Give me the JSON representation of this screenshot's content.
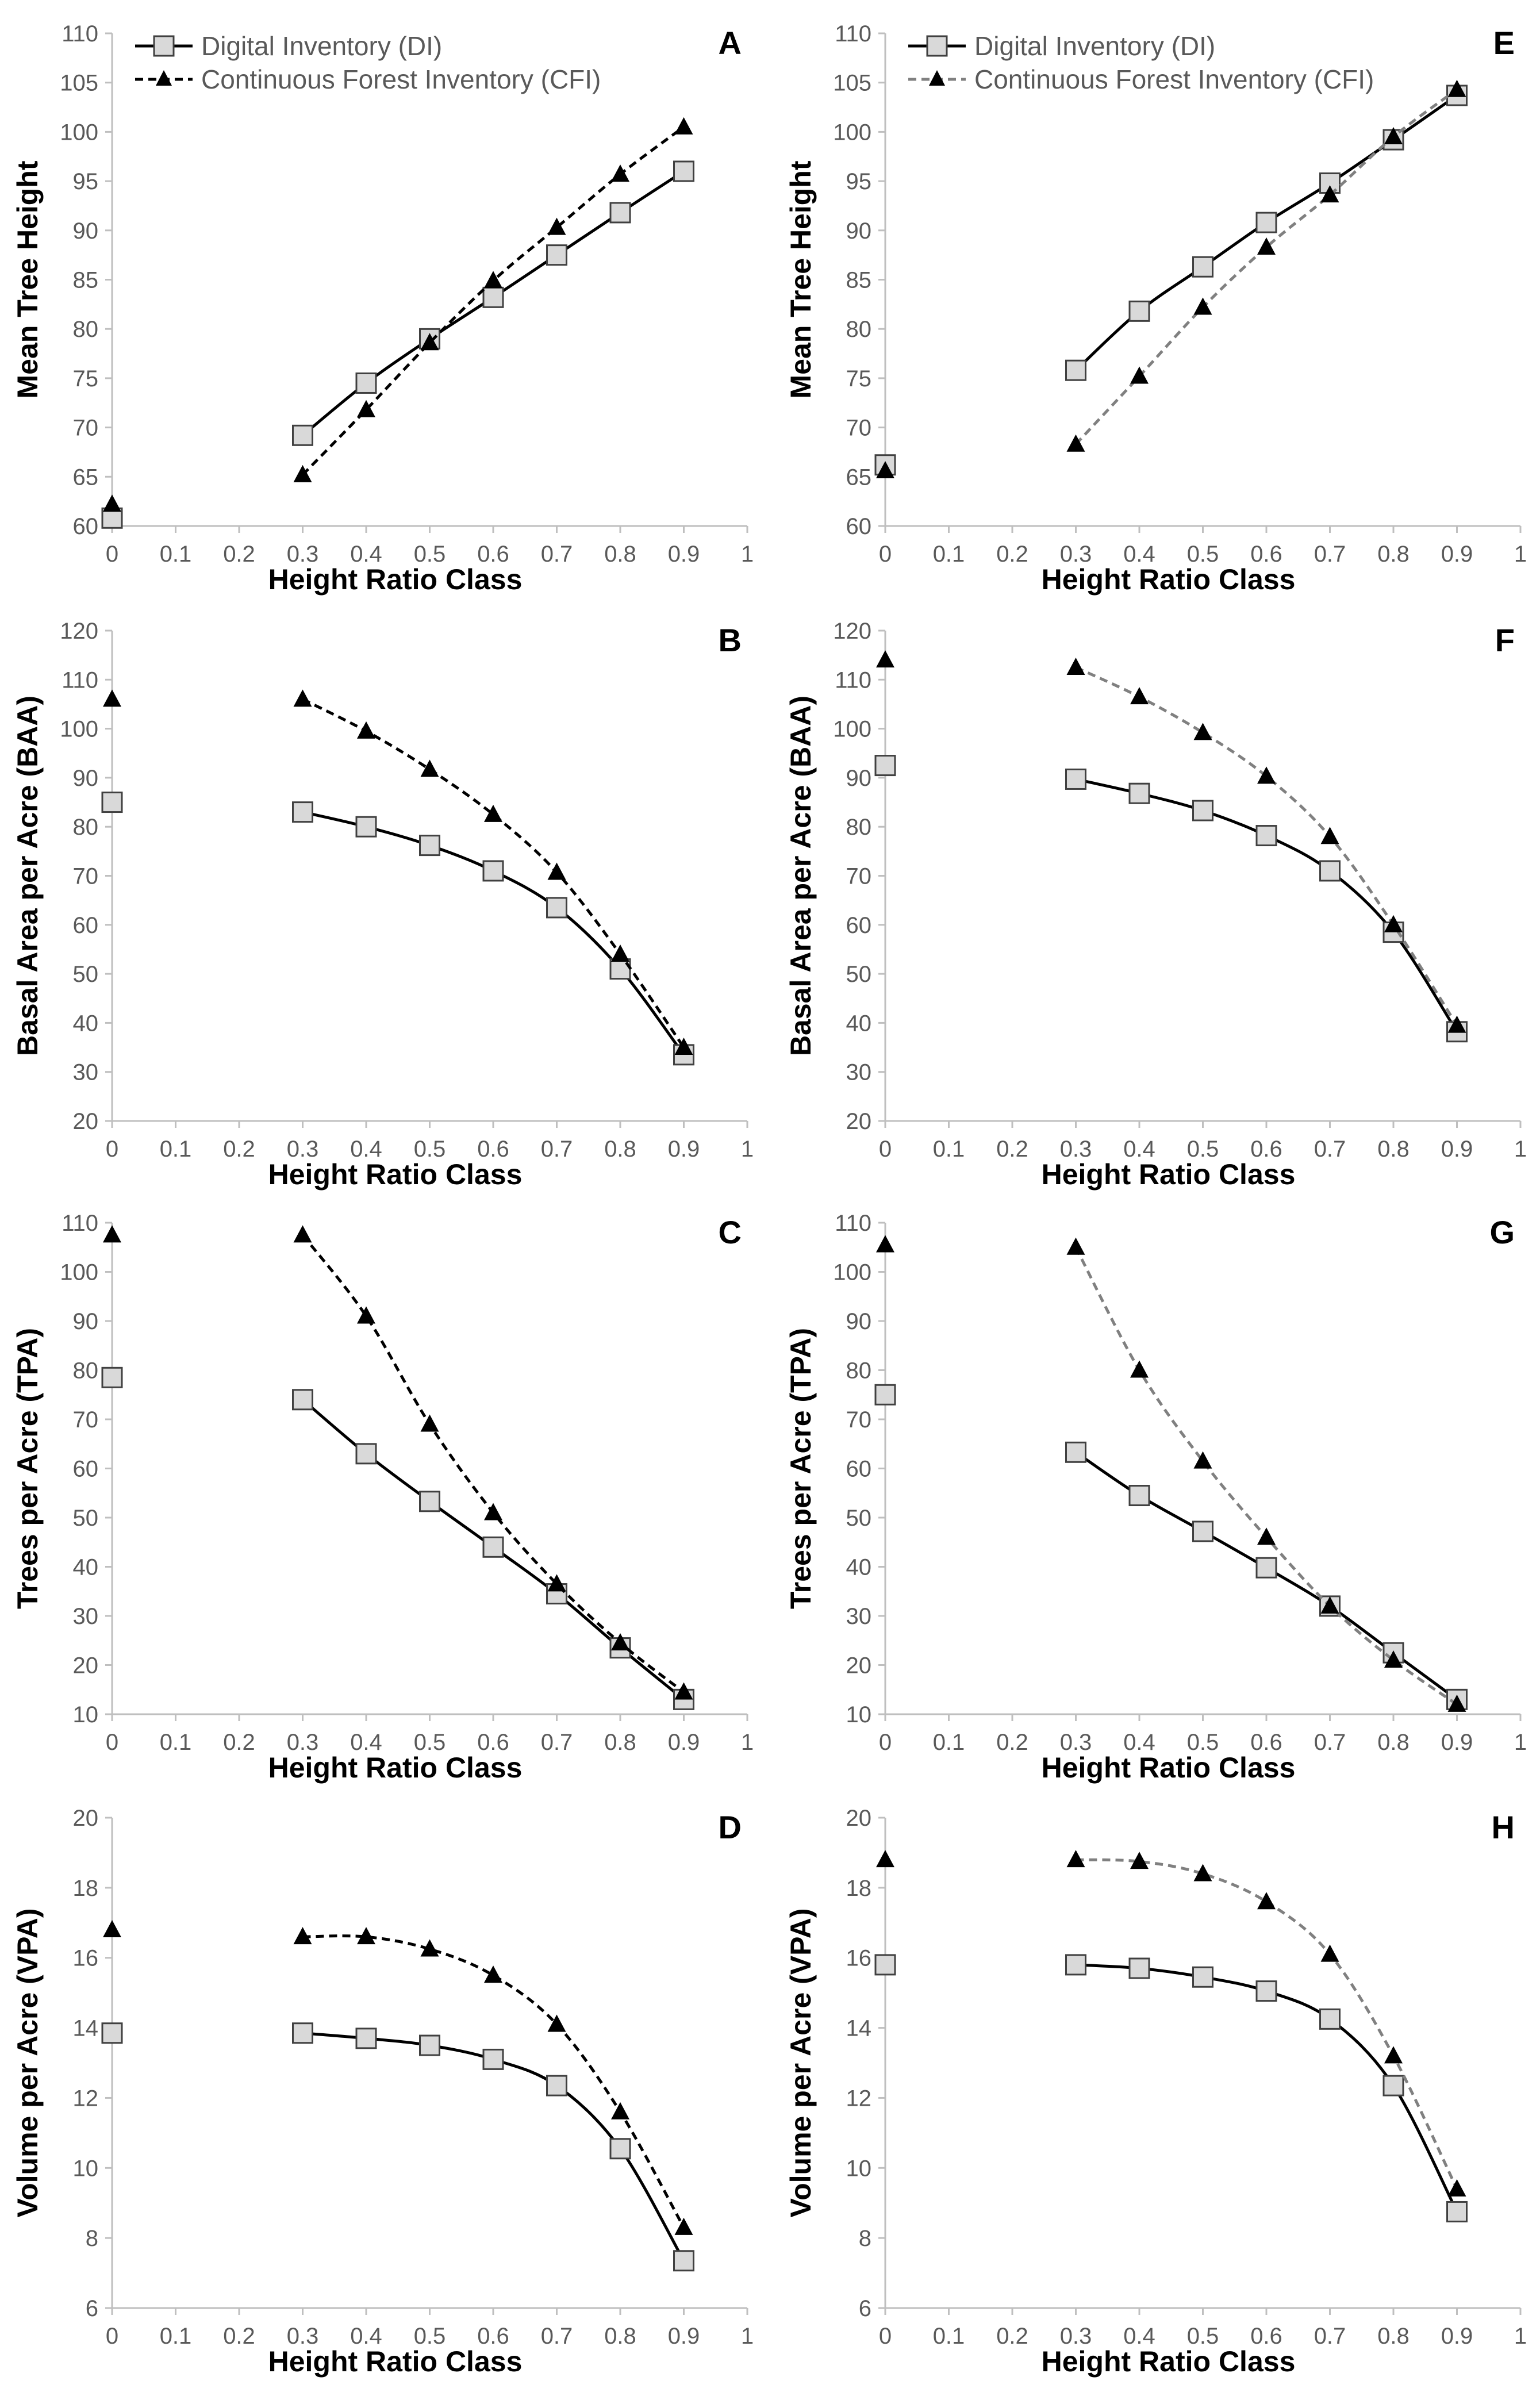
{
  "figure": {
    "legend": {
      "di_label": "Digital Inventory (DI)",
      "cfi_label": "Continuous Forest Inventory (CFI)"
    },
    "colors": {
      "di_line": "#000000",
      "di_marker_fill": "#d9d9d9",
      "cfi_left": "#000000",
      "cfi_right": "#808080",
      "axis": "#bfbfbf",
      "tick_text": "#595959"
    }
  },
  "chart_data": [
    {
      "id": "A",
      "type": "line",
      "panel_label": "A",
      "xlabel": "Height Ratio Class",
      "ylabel": "Mean Tree Height",
      "xlim": [
        0,
        1
      ],
      "xticks": [
        0,
        0.1,
        0.2,
        0.3,
        0.4,
        0.5,
        0.6,
        0.7,
        0.8,
        0.9,
        1
      ],
      "xtick_labels": [
        "0",
        "0.1",
        "0.2",
        "0.3",
        "0.4",
        "0.5",
        "0.6",
        "0.7",
        "0.8",
        "0.9",
        "1"
      ],
      "ylim": [
        60,
        110
      ],
      "yticks": [
        60,
        65,
        70,
        75,
        80,
        85,
        90,
        95,
        100,
        105,
        110
      ],
      "ytick_labels": [
        "60",
        "65",
        "70",
        "75",
        "80",
        "85",
        "90",
        "95",
        "100",
        "105",
        "110"
      ],
      "show_legend": true,
      "cfi_style": "black",
      "series": [
        {
          "name": "Digital Inventory (DI)",
          "marker": "square",
          "x": [
            0,
            0.3,
            0.4,
            0.5,
            0.6,
            0.7,
            0.8,
            0.9
          ],
          "y": [
            60.8,
            69.2,
            74.5,
            79.0,
            83.2,
            87.5,
            91.8,
            96.0
          ]
        },
        {
          "name": "Continuous Forest Inventory (CFI)",
          "marker": "triangle",
          "x": [
            0,
            0.3,
            0.4,
            0.5,
            0.6,
            0.7,
            0.8,
            0.9
          ],
          "y": [
            62.2,
            65.2,
            71.8,
            78.6,
            84.9,
            90.3,
            95.7,
            100.5
          ]
        }
      ]
    },
    {
      "id": "E",
      "type": "line",
      "panel_label": "E",
      "xlabel": "Height Ratio Class",
      "ylabel": "Mean Tree Height",
      "xlim": [
        0,
        1
      ],
      "xticks": [
        0,
        0.1,
        0.2,
        0.3,
        0.4,
        0.5,
        0.6,
        0.7,
        0.8,
        0.9,
        1
      ],
      "xtick_labels": [
        "0",
        "0.1",
        "0.2",
        "0.3",
        "0.4",
        "0.5",
        "0.6",
        "0.7",
        "0.8",
        "0.9",
        "1"
      ],
      "ylim": [
        60,
        110
      ],
      "yticks": [
        60,
        65,
        70,
        75,
        80,
        85,
        90,
        95,
        100,
        105,
        110
      ],
      "ytick_labels": [
        "60",
        "65",
        "70",
        "75",
        "80",
        "85",
        "90",
        "95",
        "100",
        "105",
        "110"
      ],
      "show_legend": true,
      "cfi_style": "gray",
      "series": [
        {
          "name": "Digital Inventory (DI)",
          "marker": "square",
          "x": [
            0,
            0.3,
            0.4,
            0.5,
            0.6,
            0.7,
            0.8,
            0.9
          ],
          "y": [
            66.2,
            75.8,
            81.8,
            86.3,
            90.8,
            94.8,
            99.2,
            103.7
          ]
        },
        {
          "name": "Continuous Forest Inventory (CFI)",
          "marker": "triangle",
          "x": [
            0,
            0.3,
            0.4,
            0.5,
            0.6,
            0.7,
            0.8,
            0.9
          ],
          "y": [
            65.6,
            68.3,
            75.2,
            82.2,
            88.3,
            93.6,
            99.5,
            104.3
          ]
        }
      ]
    },
    {
      "id": "B",
      "type": "line",
      "panel_label": "B",
      "xlabel": "Height Ratio Class",
      "ylabel": "Basal Area per Acre (BAA)",
      "xlim": [
        0,
        1
      ],
      "xticks": [
        0,
        0.1,
        0.2,
        0.3,
        0.4,
        0.5,
        0.6,
        0.7,
        0.8,
        0.9,
        1
      ],
      "xtick_labels": [
        "0",
        "0.1",
        "0.2",
        "0.3",
        "0.4",
        "0.5",
        "0.6",
        "0.7",
        "0.8",
        "0.9",
        "1"
      ],
      "ylim": [
        20,
        120
      ],
      "yticks": [
        20,
        30,
        40,
        50,
        60,
        70,
        80,
        90,
        100,
        110,
        120
      ],
      "ytick_labels": [
        "20",
        "30",
        "40",
        "50",
        "60",
        "70",
        "80",
        "90",
        "100",
        "110",
        "120"
      ],
      "show_legend": false,
      "cfi_style": "black",
      "series": [
        {
          "name": "Digital Inventory (DI)",
          "marker": "square",
          "x": [
            0,
            0.3,
            0.4,
            0.5,
            0.6,
            0.7,
            0.8,
            0.9
          ],
          "y": [
            85.0,
            83.0,
            80.0,
            76.2,
            71.0,
            63.5,
            51.0,
            33.5
          ]
        },
        {
          "name": "Continuous Forest Inventory (CFI)",
          "marker": "triangle",
          "x": [
            0,
            0.3,
            0.4,
            0.5,
            0.6,
            0.7,
            0.8,
            0.9
          ],
          "y": [
            106.0,
            106.0,
            99.5,
            91.7,
            82.5,
            70.7,
            54.0,
            35.0
          ]
        }
      ]
    },
    {
      "id": "F",
      "type": "line",
      "panel_label": "F",
      "xlabel": "Height Ratio Class",
      "ylabel": "Basal Area per Acre (BAA)",
      "xlim": [
        0,
        1
      ],
      "xticks": [
        0,
        0.1,
        0.2,
        0.3,
        0.4,
        0.5,
        0.6,
        0.7,
        0.8,
        0.9,
        1
      ],
      "xtick_labels": [
        "0",
        "0.1",
        "0.2",
        "0.3",
        "0.4",
        "0.5",
        "0.6",
        "0.7",
        "0.8",
        "0.9",
        "1"
      ],
      "ylim": [
        20,
        120
      ],
      "yticks": [
        20,
        30,
        40,
        50,
        60,
        70,
        80,
        90,
        100,
        110,
        120
      ],
      "ytick_labels": [
        "20",
        "30",
        "40",
        "50",
        "60",
        "70",
        "80",
        "90",
        "100",
        "110",
        "120"
      ],
      "show_legend": false,
      "cfi_style": "gray",
      "series": [
        {
          "name": "Digital Inventory (DI)",
          "marker": "square",
          "x": [
            0,
            0.3,
            0.4,
            0.5,
            0.6,
            0.7,
            0.8,
            0.9
          ],
          "y": [
            92.5,
            89.7,
            86.8,
            83.3,
            78.2,
            71.0,
            58.5,
            38.2
          ]
        },
        {
          "name": "Continuous Forest Inventory (CFI)",
          "marker": "triangle",
          "x": [
            0,
            0.3,
            0.4,
            0.5,
            0.6,
            0.7,
            0.8,
            0.9
          ],
          "y": [
            114.0,
            112.5,
            106.5,
            99.2,
            90.3,
            78.0,
            60.0,
            39.5
          ]
        }
      ]
    },
    {
      "id": "C",
      "type": "line",
      "panel_label": "C",
      "xlabel": "Height Ratio Class",
      "ylabel": "Trees per Acre (TPA)",
      "xlim": [
        0,
        1
      ],
      "xticks": [
        0,
        0.1,
        0.2,
        0.3,
        0.4,
        0.5,
        0.6,
        0.7,
        0.8,
        0.9,
        1
      ],
      "xtick_labels": [
        "0",
        "0.1",
        "0.2",
        "0.3",
        "0.4",
        "0.5",
        "0.6",
        "0.7",
        "0.8",
        "0.9",
        "1"
      ],
      "ylim": [
        10,
        110
      ],
      "yticks": [
        10,
        20,
        30,
        40,
        50,
        60,
        70,
        80,
        90,
        100,
        110
      ],
      "ytick_labels": [
        "10",
        "20",
        "30",
        "40",
        "50",
        "60",
        "70",
        "80",
        "90",
        "100",
        "110"
      ],
      "show_legend": false,
      "cfi_style": "black",
      "series": [
        {
          "name": "Digital Inventory (DI)",
          "marker": "square",
          "x": [
            0,
            0.3,
            0.4,
            0.5,
            0.6,
            0.7,
            0.8,
            0.9
          ],
          "y": [
            78.5,
            74.0,
            63.0,
            53.3,
            44.0,
            34.5,
            23.5,
            13.0
          ]
        },
        {
          "name": "Continuous Forest Inventory (CFI)",
          "marker": "triangle",
          "x": [
            0,
            0.3,
            0.4,
            0.5,
            0.6,
            0.7,
            0.8,
            0.9
          ],
          "y": [
            107.5,
            107.5,
            91.0,
            69.0,
            51.0,
            36.5,
            24.5,
            14.5
          ]
        }
      ]
    },
    {
      "id": "G",
      "type": "line",
      "panel_label": "G",
      "xlabel": "Height Ratio Class",
      "ylabel": "Trees per Acre (TPA)",
      "xlim": [
        0,
        1
      ],
      "xticks": [
        0,
        0.1,
        0.2,
        0.3,
        0.4,
        0.5,
        0.6,
        0.7,
        0.8,
        0.9,
        1
      ],
      "xtick_labels": [
        "0",
        "0.1",
        "0.2",
        "0.3",
        "0.4",
        "0.5",
        "0.6",
        "0.7",
        "0.8",
        "0.9",
        "1"
      ],
      "ylim": [
        10,
        110
      ],
      "yticks": [
        10,
        20,
        30,
        40,
        50,
        60,
        70,
        80,
        90,
        100,
        110
      ],
      "ytick_labels": [
        "10",
        "20",
        "30",
        "40",
        "50",
        "60",
        "70",
        "80",
        "90",
        "100",
        "110"
      ],
      "show_legend": false,
      "cfi_style": "gray",
      "series": [
        {
          "name": "Digital Inventory (DI)",
          "marker": "square",
          "x": [
            0,
            0.3,
            0.4,
            0.5,
            0.6,
            0.7,
            0.8,
            0.9
          ],
          "y": [
            75.0,
            63.3,
            54.5,
            47.2,
            39.8,
            32.0,
            22.5,
            13.0
          ]
        },
        {
          "name": "Continuous Forest Inventory (CFI)",
          "marker": "triangle",
          "x": [
            0,
            0.3,
            0.4,
            0.5,
            0.6,
            0.7,
            0.8,
            0.9
          ],
          "y": [
            105.5,
            105.0,
            80.0,
            61.5,
            46.0,
            32.0,
            21.0,
            12.0
          ]
        }
      ]
    },
    {
      "id": "D",
      "type": "line",
      "panel_label": "D",
      "xlabel": "Height Ratio Class",
      "ylabel": "Volume per Acre (VPA)",
      "xlim": [
        0,
        1
      ],
      "xticks": [
        0,
        0.1,
        0.2,
        0.3,
        0.4,
        0.5,
        0.6,
        0.7,
        0.8,
        0.9,
        1
      ],
      "xtick_labels": [
        "0",
        "0.1",
        "0.2",
        "0.3",
        "0.4",
        "0.5",
        "0.6",
        "0.7",
        "0.8",
        "0.9",
        "1"
      ],
      "ylim": [
        6,
        20
      ],
      "yticks": [
        6,
        8,
        10,
        12,
        14,
        16,
        18,
        20
      ],
      "ytick_labels": [
        "6",
        "8",
        "10",
        "12",
        "14",
        "16",
        "18",
        "20"
      ],
      "show_legend": false,
      "cfi_style": "black",
      "series": [
        {
          "name": "Digital Inventory (DI)",
          "marker": "square",
          "x": [
            0,
            0.3,
            0.4,
            0.5,
            0.6,
            0.7,
            0.8,
            0.9
          ],
          "y": [
            13.85,
            13.85,
            13.7,
            13.5,
            13.1,
            12.35,
            10.55,
            7.35
          ]
        },
        {
          "name": "Continuous Forest Inventory (CFI)",
          "marker": "triangle",
          "x": [
            0,
            0.3,
            0.4,
            0.5,
            0.6,
            0.7,
            0.8,
            0.9
          ],
          "y": [
            16.8,
            16.6,
            16.6,
            16.25,
            15.5,
            14.1,
            11.6,
            8.3
          ]
        }
      ]
    },
    {
      "id": "H",
      "type": "line",
      "panel_label": "H",
      "xlabel": "Height Ratio Class",
      "ylabel": "Volume per Acre (VPA)",
      "xlim": [
        0,
        1
      ],
      "xticks": [
        0,
        0.1,
        0.2,
        0.3,
        0.4,
        0.5,
        0.6,
        0.7,
        0.8,
        0.9,
        1
      ],
      "xtick_labels": [
        "0",
        "0.1",
        "0.2",
        "0.3",
        "0.4",
        "0.5",
        "0.6",
        "0.7",
        "0.8",
        "0.9",
        "1"
      ],
      "ylim": [
        6,
        20
      ],
      "yticks": [
        6,
        8,
        10,
        12,
        14,
        16,
        18,
        20
      ],
      "ytick_labels": [
        "6",
        "8",
        "10",
        "12",
        "14",
        "16",
        "18",
        "20"
      ],
      "show_legend": false,
      "cfi_style": "gray",
      "series": [
        {
          "name": "Digital Inventory (DI)",
          "marker": "square",
          "x": [
            0,
            0.3,
            0.4,
            0.5,
            0.6,
            0.7,
            0.8,
            0.9
          ],
          "y": [
            15.8,
            15.8,
            15.7,
            15.45,
            15.05,
            14.25,
            12.35,
            8.75
          ]
        },
        {
          "name": "Continuous Forest Inventory (CFI)",
          "marker": "triangle",
          "x": [
            0,
            0.3,
            0.4,
            0.5,
            0.6,
            0.7,
            0.8,
            0.9
          ],
          "y": [
            18.8,
            18.8,
            18.75,
            18.4,
            17.6,
            16.1,
            13.2,
            9.4
          ]
        }
      ]
    }
  ]
}
